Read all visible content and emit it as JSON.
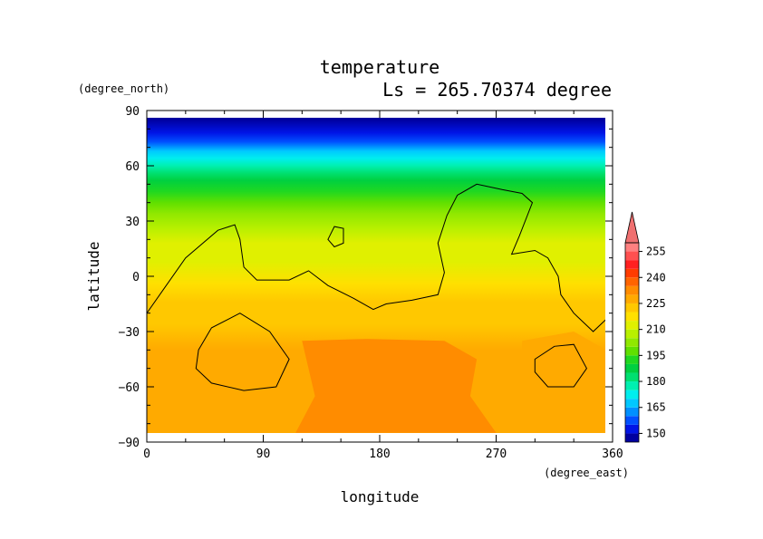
{
  "chart_data": {
    "type": "heatmap",
    "title": "temperature",
    "subtitle": "Ls = 265.70374 degree",
    "xlabel": "longitude",
    "ylabel": "latitude",
    "xunits": "(degree_east)",
    "yunits": "(degree_north)",
    "xlim": [
      0,
      360
    ],
    "ylim": [
      -90,
      90
    ],
    "xticks": [
      "0",
      "90",
      "180",
      "270",
      "360"
    ],
    "yticks": [
      "90",
      "60",
      "30",
      "0",
      "−30",
      "−60",
      "−90"
    ],
    "colorbar": {
      "levels": [
        145,
        150,
        155,
        160,
        165,
        170,
        175,
        180,
        185,
        190,
        195,
        200,
        205,
        210,
        215,
        220,
        225,
        230,
        235,
        240,
        245,
        250,
        255,
        260
      ],
      "labels": [
        "255",
        "240",
        "225",
        "210",
        "195",
        "180",
        "165",
        "150"
      ],
      "colors": [
        "#0000a0",
        "#0014e6",
        "#0050ff",
        "#0090ff",
        "#00c8ff",
        "#00eeee",
        "#00f0b0",
        "#00e070",
        "#00d040",
        "#20d820",
        "#60e000",
        "#90e800",
        "#b8f000",
        "#e0f000",
        "#ffe000",
        "#ffc800",
        "#ffaa00",
        "#ff8c00",
        "#ff6400",
        "#ff3c00",
        "#ff2020",
        "#ff5050",
        "#ff8080"
      ],
      "extend_color": "#f07070"
    },
    "zonal_profile": [
      {
        "lat": 85,
        "value": 147
      },
      {
        "lat": 78,
        "value": 152
      },
      {
        "lat": 73,
        "value": 158
      },
      {
        "lat": 68,
        "value": 165
      },
      {
        "lat": 64,
        "value": 172
      },
      {
        "lat": 60,
        "value": 178
      },
      {
        "lat": 56,
        "value": 184
      },
      {
        "lat": 52,
        "value": 188
      },
      {
        "lat": 46,
        "value": 193
      },
      {
        "lat": 40,
        "value": 197
      },
      {
        "lat": 34,
        "value": 202
      },
      {
        "lat": 26,
        "value": 207
      },
      {
        "lat": 18,
        "value": 211
      },
      {
        "lat": 8,
        "value": 214
      },
      {
        "lat": -4,
        "value": 218
      },
      {
        "lat": -14,
        "value": 221
      },
      {
        "lat": -26,
        "value": 224
      },
      {
        "lat": -40,
        "value": 227
      },
      {
        "lat": -55,
        "value": 228
      },
      {
        "lat": -70,
        "value": 227
      },
      {
        "lat": -85,
        "value": 226
      }
    ],
    "warm_regions": [
      {
        "name": "warm-core",
        "value": 233,
        "points": [
          [
            120,
            -35
          ],
          [
            170,
            -34
          ],
          [
            230,
            -35
          ],
          [
            255,
            -45
          ],
          [
            250,
            -65
          ],
          [
            270,
            -85
          ],
          [
            190,
            -85
          ],
          [
            115,
            -85
          ],
          [
            130,
            -65
          ]
        ]
      },
      {
        "name": "warm-east-tongue",
        "value": 226,
        "points": [
          [
            290,
            -35
          ],
          [
            330,
            -30
          ],
          [
            355,
            -40
          ],
          [
            355,
            -55
          ],
          [
            320,
            -60
          ],
          [
            290,
            -55
          ]
        ]
      }
    ],
    "topography_contours": [
      {
        "name": "continent-line",
        "points": [
          [
            0,
            -20
          ],
          [
            15,
            -5
          ],
          [
            30,
            10
          ],
          [
            55,
            25
          ],
          [
            68,
            28
          ],
          [
            72,
            20
          ],
          [
            75,
            5
          ],
          [
            85,
            -2
          ],
          [
            110,
            -2
          ],
          [
            125,
            3
          ],
          [
            140,
            -5
          ],
          [
            160,
            -12
          ],
          [
            175,
            -18
          ],
          [
            185,
            -15
          ],
          [
            205,
            -13
          ],
          [
            225,
            -10
          ],
          [
            230,
            2
          ],
          [
            225,
            18
          ],
          [
            232,
            33
          ],
          [
            240,
            44
          ],
          [
            255,
            50
          ],
          [
            275,
            47
          ],
          [
            290,
            45
          ],
          [
            298,
            40
          ],
          [
            288,
            22
          ],
          [
            282,
            12
          ],
          [
            300,
            14
          ],
          [
            310,
            10
          ],
          [
            318,
            0
          ],
          [
            320,
            -10
          ],
          [
            330,
            -20
          ],
          [
            345,
            -30
          ],
          [
            360,
            -20
          ]
        ]
      },
      {
        "name": "hellas-ring",
        "points": [
          [
            40,
            -40
          ],
          [
            50,
            -28
          ],
          [
            72,
            -20
          ],
          [
            95,
            -30
          ],
          [
            110,
            -45
          ],
          [
            100,
            -60
          ],
          [
            75,
            -62
          ],
          [
            50,
            -58
          ],
          [
            38,
            -50
          ]
        ]
      },
      {
        "name": "argyre-ring",
        "points": [
          [
            300,
            -45
          ],
          [
            315,
            -38
          ],
          [
            330,
            -37
          ],
          [
            340,
            -50
          ],
          [
            330,
            -60
          ],
          [
            310,
            -60
          ],
          [
            300,
            -52
          ]
        ]
      },
      {
        "name": "elysium-blob",
        "points": [
          [
            140,
            20
          ],
          [
            145,
            27
          ],
          [
            152,
            26
          ],
          [
            152,
            18
          ],
          [
            145,
            16
          ]
        ]
      }
    ]
  }
}
